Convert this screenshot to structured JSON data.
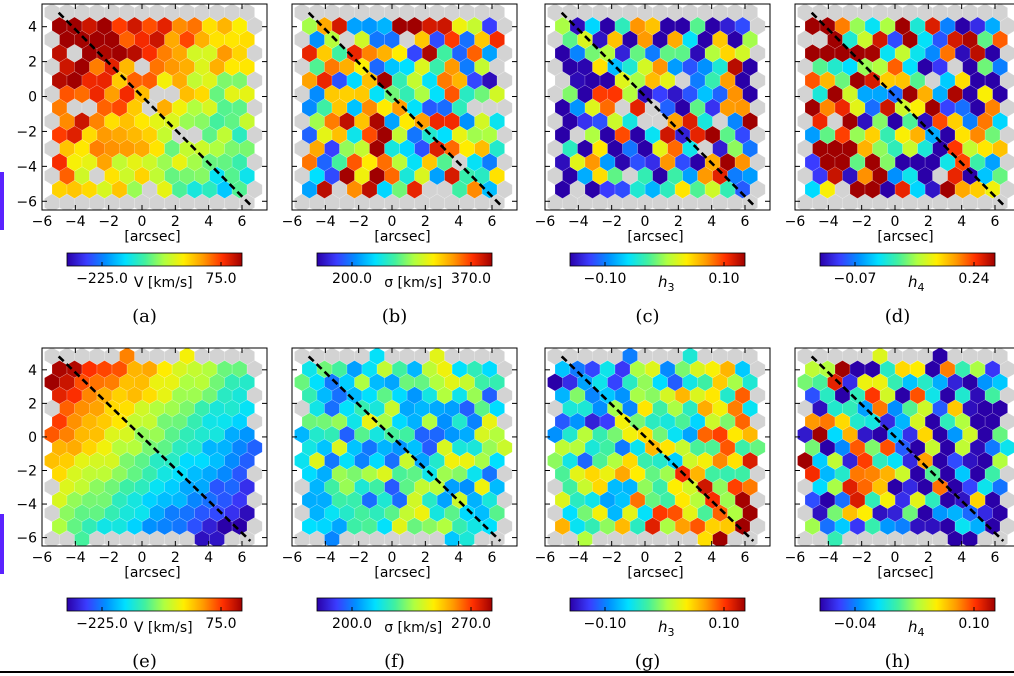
{
  "chart_data": [
    {
      "panel": "(a)",
      "type": "heatmap",
      "quantity": "velocity",
      "xlabel": "[arcsec]",
      "x_ticks": [
        -6,
        -4,
        -2,
        0,
        2,
        4,
        6
      ],
      "y_ticks": [
        4,
        2,
        0,
        -2,
        -4,
        -6
      ],
      "xlim": [
        -6,
        7.5
      ],
      "ylim": [
        -6.5,
        5.3
      ],
      "colorbar": {
        "label": "V [km/s]",
        "min": -225.0,
        "max": 75.0,
        "min_label": "-225.0",
        "max_label": "75.0"
      },
      "dashed_line": {
        "x": [
          -5,
          6.5
        ],
        "y": [
          4.8,
          -6.2
        ]
      }
    },
    {
      "panel": "(b)",
      "type": "heatmap",
      "quantity": "dispersion",
      "xlabel": "[arcsec]",
      "x_ticks": [
        -6,
        -4,
        -2,
        0,
        2,
        4,
        6
      ],
      "xlim": [
        -6,
        7.5
      ],
      "ylim": [
        -6.5,
        5.3
      ],
      "colorbar": {
        "label": "σ [km/s]",
        "min": 200.0,
        "max": 370.0,
        "min_label": "200.0",
        "max_label": "370.0"
      },
      "dashed_line": {
        "x": [
          -5,
          6.5
        ],
        "y": [
          4.8,
          -6.2
        ]
      }
    },
    {
      "panel": "(c)",
      "type": "heatmap",
      "quantity": "h3",
      "xlabel": "[arcsec]",
      "x_ticks": [
        -6,
        -4,
        -2,
        0,
        2,
        4,
        6
      ],
      "xlim": [
        -6,
        7.5
      ],
      "ylim": [
        -6.5,
        5.3
      ],
      "colorbar": {
        "label": "h3",
        "min": -0.1,
        "max": 0.1,
        "min_label": "-0.10",
        "max_label": "0.10"
      },
      "dashed_line": {
        "x": [
          -5,
          6.5
        ],
        "y": [
          4.8,
          -6.2
        ]
      }
    },
    {
      "panel": "(d)",
      "type": "heatmap",
      "quantity": "h4",
      "xlabel": "[arcsec]",
      "x_ticks": [
        -6,
        -4,
        -2,
        0,
        2,
        4,
        6
      ],
      "xlim": [
        -6,
        7.5
      ],
      "ylim": [
        -6.5,
        5.3
      ],
      "colorbar": {
        "label": "h4",
        "min": -0.07,
        "max": 0.24,
        "min_label": "-0.07",
        "max_label": "0.24"
      },
      "dashed_line": {
        "x": [
          -5,
          6.5
        ],
        "y": [
          4.8,
          -6.2
        ]
      }
    },
    {
      "panel": "(e)",
      "type": "heatmap",
      "quantity": "velocity_model",
      "xlabel": "[arcsec]",
      "x_ticks": [
        -6,
        -4,
        -2,
        0,
        2,
        4,
        6
      ],
      "y_ticks": [
        4,
        2,
        0,
        -2,
        -4,
        -6
      ],
      "xlim": [
        -6,
        7.5
      ],
      "ylim": [
        -6.5,
        5.3
      ],
      "colorbar": {
        "label": "V [km/s]",
        "min": -225.0,
        "max": 75.0,
        "min_label": "-225.0",
        "max_label": "75.0"
      },
      "dashed_line": {
        "x": [
          -5,
          6.5
        ],
        "y": [
          4.8,
          -6.2
        ]
      }
    },
    {
      "panel": "(f)",
      "type": "heatmap",
      "quantity": "dispersion_model",
      "xlabel": "[arcsec]",
      "x_ticks": [
        -6,
        -4,
        -2,
        0,
        2,
        4,
        6
      ],
      "xlim": [
        -6,
        7.5
      ],
      "ylim": [
        -6.5,
        5.3
      ],
      "colorbar": {
        "label": "σ [km/s]",
        "min": 200.0,
        "max": 270.0,
        "min_label": "200.0",
        "max_label": "270.0"
      },
      "dashed_line": {
        "x": [
          -5,
          6.5
        ],
        "y": [
          4.8,
          -6.2
        ]
      }
    },
    {
      "panel": "(g)",
      "type": "heatmap",
      "quantity": "h3_model",
      "xlabel": "[arcsec]",
      "x_ticks": [
        -6,
        -4,
        -2,
        0,
        2,
        4,
        6
      ],
      "xlim": [
        -6,
        7.5
      ],
      "ylim": [
        -6.5,
        5.3
      ],
      "colorbar": {
        "label": "h3",
        "min": -0.1,
        "max": 0.1,
        "min_label": "-0.10",
        "max_label": "0.10"
      },
      "dashed_line": {
        "x": [
          -5,
          6.5
        ],
        "y": [
          4.8,
          -6.2
        ]
      }
    },
    {
      "panel": "(h)",
      "type": "heatmap",
      "quantity": "h4_model",
      "xlabel": "[arcsec]",
      "x_ticks": [
        -6,
        -4,
        -2,
        0,
        2,
        4,
        6
      ],
      "xlim": [
        -6,
        7.5
      ],
      "ylim": [
        -6.5,
        5.3
      ],
      "colorbar": {
        "label": "h4",
        "min": -0.04,
        "max": 0.1,
        "min_label": "-0.04",
        "max_label": "0.10"
      },
      "dashed_line": {
        "x": [
          -5,
          6.5
        ],
        "y": [
          4.8,
          -6.2
        ]
      }
    }
  ],
  "colors": {
    "masked_bin": "#d3d3d3",
    "colormap": [
      "#2a00a8",
      "#3a3cff",
      "#0090ff",
      "#00e0ff",
      "#40f0a0",
      "#b0ff40",
      "#ffee00",
      "#ff9a00",
      "#ff3000",
      "#a00000"
    ],
    "left_edge_bar": "#5a22ff"
  }
}
